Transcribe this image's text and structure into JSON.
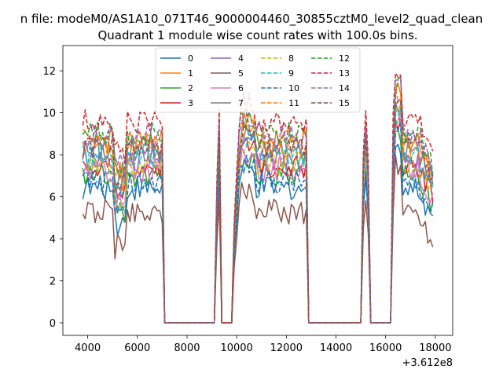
{
  "figure": {
    "suptitle": "n file: modeM0/AS1A10_071T46_9000004460_30855cztM0_level2_quad_clean"
  },
  "chart_data": {
    "type": "line",
    "title": "Quadrant 1 module wise count rates with 100.0s bins.",
    "xlabel": "",
    "ylabel": "",
    "x_offset_label": "+3.612e8",
    "xlim": [
      3000,
      18700
    ],
    "ylim": [
      -0.6,
      13.2
    ],
    "x_ticks": [
      4000,
      6000,
      8000,
      10000,
      12000,
      14000,
      16000,
      18000
    ],
    "x_tick_labels": [
      "4000",
      "6000",
      "8000",
      "10000",
      "12000",
      "14000",
      "16000",
      "18000"
    ],
    "y_ticks": [
      0,
      2,
      4,
      6,
      8,
      10,
      12
    ],
    "y_tick_labels": [
      "0",
      "2",
      "4",
      "6",
      "8",
      "10",
      "12"
    ],
    "grid": false,
    "legend": {
      "placement": "top-center",
      "columns": 4
    },
    "segments_x": [
      [
        3800,
        7000
      ],
      [
        9200,
        9400
      ],
      [
        9900,
        12800
      ],
      [
        15100,
        15400
      ],
      [
        16300,
        17900
      ]
    ],
    "zero_gaps_x": [
      [
        7100,
        9100
      ],
      [
        9500,
        9800
      ],
      [
        12900,
        15000
      ],
      [
        15500,
        16200
      ]
    ],
    "series": [
      {
        "name": "0",
        "style": "solid",
        "color": "#1f77b4",
        "level": 6.4
      },
      {
        "name": "1",
        "style": "solid",
        "color": "#ff7f0e",
        "level": 8.7
      },
      {
        "name": "2",
        "style": "solid",
        "color": "#2ca02c",
        "level": 7.0
      },
      {
        "name": "3",
        "style": "solid",
        "color": "#d62728",
        "level": 7.5
      },
      {
        "name": "4",
        "style": "solid",
        "color": "#9467bd",
        "level": 7.8
      },
      {
        "name": "5",
        "style": "solid",
        "color": "#8c564b",
        "level": 5.3
      },
      {
        "name": "6",
        "style": "solid",
        "color": "#e377c2",
        "level": 7.3
      },
      {
        "name": "7",
        "style": "solid",
        "color": "#7f7f7f",
        "level": 8.2
      },
      {
        "name": "8",
        "style": "dashed",
        "color": "#bcbd22",
        "level": 7.6
      },
      {
        "name": "9",
        "style": "dashed",
        "color": "#17becf",
        "level": 8.0
      },
      {
        "name": "10",
        "style": "dashed",
        "color": "#1f77b4",
        "level": 6.7
      },
      {
        "name": "11",
        "style": "dashed",
        "color": "#ff7f0e",
        "level": 8.5
      },
      {
        "name": "12",
        "style": "dashed",
        "color": "#2ca02c",
        "level": 9.0
      },
      {
        "name": "13",
        "style": "dashed",
        "color": "#d62728",
        "level": 9.6
      },
      {
        "name": "14",
        "style": "dashed",
        "color": "#9467bd",
        "level": 8.9
      },
      {
        "name": "15",
        "style": "dashed",
        "color": "#8c564b",
        "level": 8.4
      }
    ]
  }
}
